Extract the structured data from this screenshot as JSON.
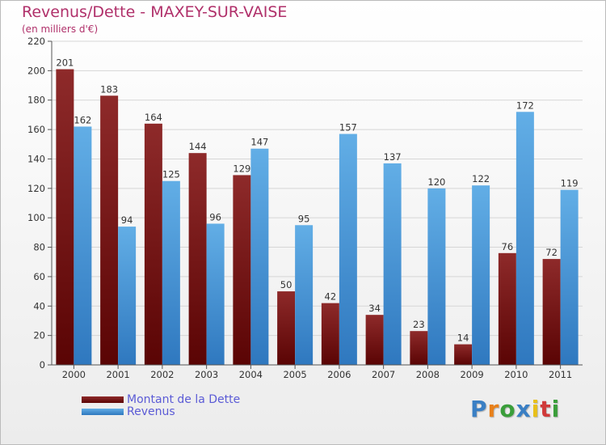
{
  "title": "Revenus/Dette - MAXEY-SUR-VAISE",
  "subtitle": "(en milliers d'€)",
  "brand": {
    "letters": [
      "P",
      "r",
      "o",
      "x",
      "i",
      "t",
      "i"
    ],
    "colors": [
      "#3a7fc4",
      "#e8801a",
      "#3a9e3a",
      "#3a7fc4",
      "#e8c01a",
      "#d03a3a",
      "#3a9e3a"
    ]
  },
  "colors": {
    "dette": "#7a1a1a",
    "revenus": "#4f9fdc",
    "title": "#b0306a",
    "legend_text": "#5b5bd6"
  },
  "chart_data": {
    "type": "bar",
    "categories": [
      "2000",
      "2001",
      "2002",
      "2003",
      "2004",
      "2005",
      "2006",
      "2007",
      "2008",
      "2009",
      "2010",
      "2011"
    ],
    "series": [
      {
        "name": "Montant de la Dette",
        "values": [
          201,
          183,
          164,
          144,
          129,
          50,
          42,
          34,
          23,
          14,
          76,
          72
        ]
      },
      {
        "name": "Revenus",
        "values": [
          162,
          94,
          125,
          96,
          147,
          95,
          157,
          137,
          120,
          122,
          172,
          119
        ]
      }
    ],
    "ylim": [
      0,
      220
    ],
    "yticks": [
      0,
      20,
      40,
      60,
      80,
      100,
      120,
      140,
      160,
      180,
      200,
      220
    ],
    "grid": true,
    "legend": "bottom-left"
  }
}
